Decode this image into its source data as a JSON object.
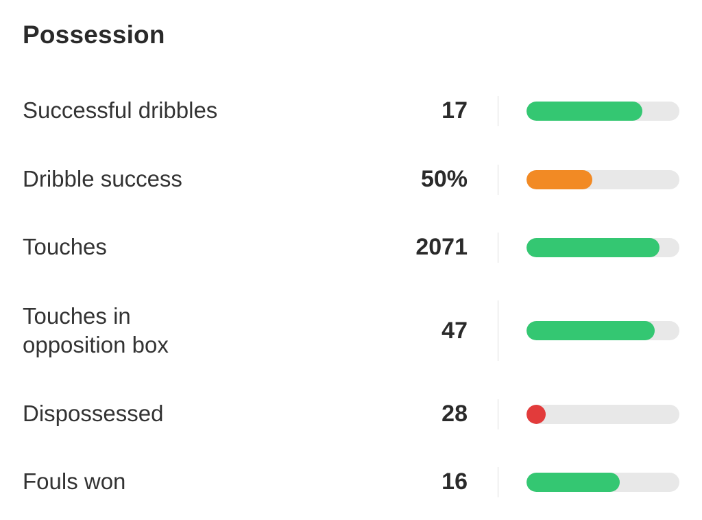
{
  "section": {
    "title": "Possession"
  },
  "colors": {
    "good": "#34c772",
    "average": "#f28a24",
    "poor": "#e23b3b",
    "track": "#e8e8e8"
  },
  "stats": [
    {
      "label": "Successful dribbles",
      "value": "17",
      "percentile": 0.76,
      "rating": "good"
    },
    {
      "label": "Dribble success",
      "value": "50%",
      "percentile": 0.43,
      "rating": "average"
    },
    {
      "label": "Touches",
      "value": "2071",
      "percentile": 0.87,
      "rating": "good"
    },
    {
      "label": "Touches in opposition box",
      "value": "47",
      "percentile": 0.84,
      "rating": "good"
    },
    {
      "label": "Dispossessed",
      "value": "28",
      "percentile": 0.06,
      "rating": "poor"
    },
    {
      "label": "Fouls won",
      "value": "16",
      "percentile": 0.61,
      "rating": "good"
    }
  ]
}
